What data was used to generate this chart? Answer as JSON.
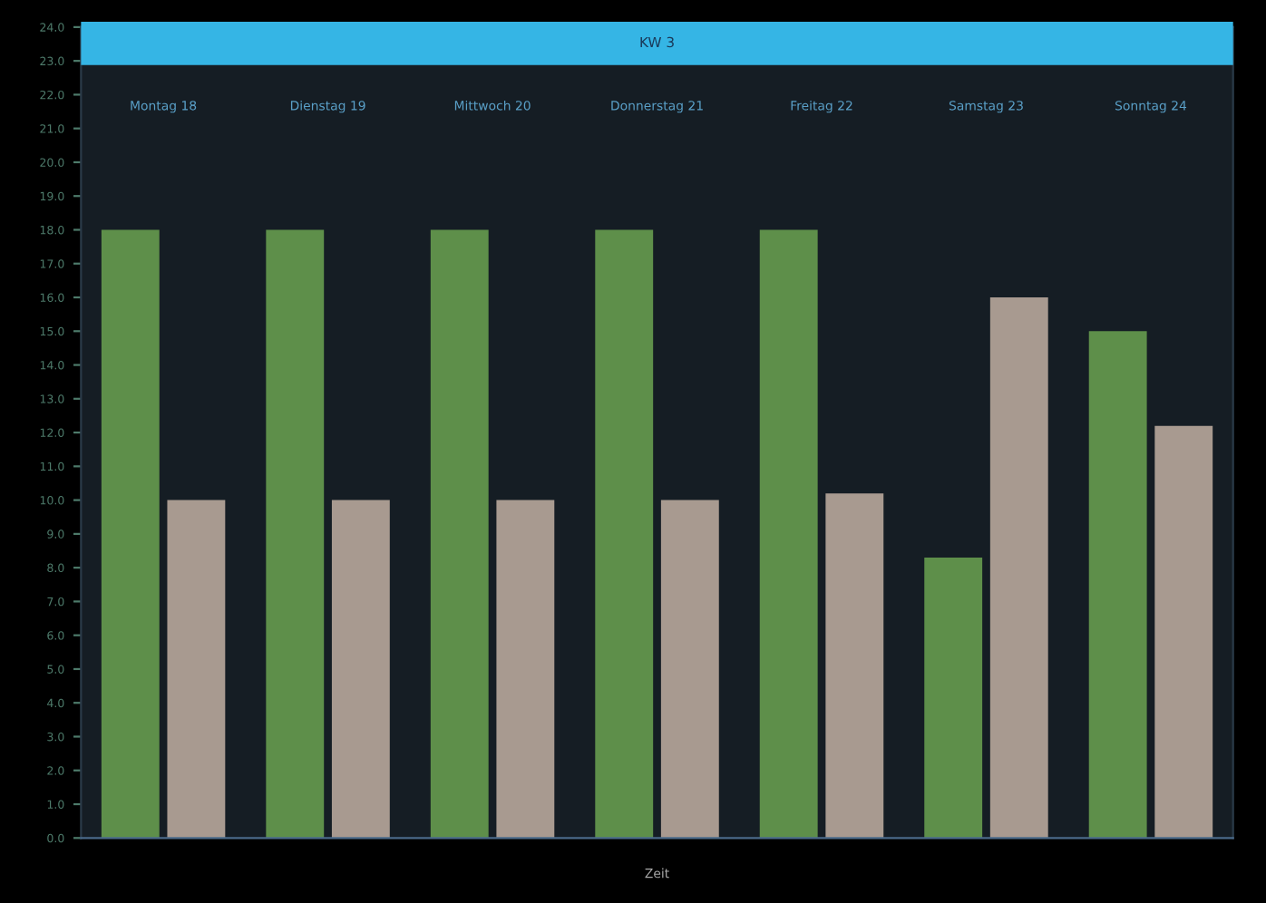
{
  "chart_data": {
    "type": "bar",
    "title": "KW 3",
    "xlabel": "Zeit",
    "categories": [
      "Montag 18",
      "Dienstag 19",
      "Mittwoch 20",
      "Donnerstag 21",
      "Freitag 22",
      "Samstag 23",
      "Sonntag 24"
    ],
    "series": [
      {
        "color": "#5e8f4a",
        "values": [
          18,
          18,
          18,
          18,
          18,
          8.3,
          15
        ]
      },
      {
        "color": "#a89a90",
        "values": [
          10,
          10,
          10,
          10,
          10.2,
          16,
          12.2
        ]
      }
    ],
    "ylim": [
      0,
      24
    ],
    "yticks": [
      {
        "value": 0,
        "label": "0.0"
      },
      {
        "value": 1,
        "label": "1.0"
      },
      {
        "value": 2,
        "label": "2.0"
      },
      {
        "value": 3,
        "label": "3.0"
      },
      {
        "value": 4,
        "label": "4.0"
      },
      {
        "value": 5,
        "label": "5.0"
      },
      {
        "value": 6,
        "label": "6.0"
      },
      {
        "value": 7,
        "label": "7.0"
      },
      {
        "value": 8,
        "label": "8.0"
      },
      {
        "value": 9,
        "label": "9.0"
      },
      {
        "value": 10,
        "label": "10.0"
      },
      {
        "value": 11,
        "label": "11.0"
      },
      {
        "value": 12,
        "label": "12.0"
      },
      {
        "value": 13,
        "label": "13.0"
      },
      {
        "value": 14,
        "label": "14.0"
      },
      {
        "value": 15,
        "label": "15.0"
      },
      {
        "value": 16,
        "label": "16.0"
      },
      {
        "value": 17,
        "label": "17.0"
      },
      {
        "value": 18,
        "label": "18.0"
      },
      {
        "value": 19,
        "label": "19.0"
      },
      {
        "value": 20,
        "label": "20.0"
      },
      {
        "value": 21,
        "label": "21.0"
      },
      {
        "value": 22,
        "label": "22.0"
      },
      {
        "value": 23,
        "label": "23.0"
      },
      {
        "value": 24,
        "label": "24.0"
      }
    ],
    "grid": false
  }
}
